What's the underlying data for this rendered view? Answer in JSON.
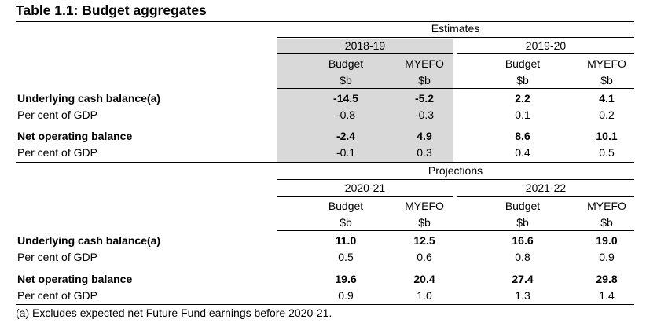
{
  "title": "Table 1.1: Budget aggregates",
  "sections": [
    {
      "heading": "Estimates",
      "years": [
        "2018-19",
        "2019-20"
      ],
      "subheaders": [
        "Budget",
        "MYEFO",
        "Budget",
        "MYEFO"
      ],
      "units": [
        "$b",
        "$b",
        "$b",
        "$b"
      ],
      "rows": [
        {
          "label": "Underlying cash balance(a)",
          "bold": true,
          "values": [
            "-14.5",
            "-5.2",
            "2.2",
            "4.1"
          ]
        },
        {
          "label": "Per cent of GDP",
          "bold": false,
          "values": [
            "-0.8",
            "-0.3",
            "0.1",
            "0.2"
          ]
        },
        {
          "label": "Net operating balance",
          "bold": true,
          "values": [
            "-2.4",
            "4.9",
            "8.6",
            "10.1"
          ]
        },
        {
          "label": "Per cent of GDP",
          "bold": false,
          "values": [
            "-0.1",
            "0.3",
            "0.4",
            "0.5"
          ]
        }
      ]
    },
    {
      "heading": "Projections",
      "years": [
        "2020-21",
        "2021-22"
      ],
      "subheaders": [
        "Budget",
        "MYEFO",
        "Budget",
        "MYEFO"
      ],
      "units": [
        "$b",
        "$b",
        "$b",
        "$b"
      ],
      "rows": [
        {
          "label": "Underlying cash balance(a)",
          "bold": true,
          "values": [
            "11.0",
            "12.5",
            "16.6",
            "19.0"
          ]
        },
        {
          "label": "Per cent of GDP",
          "bold": false,
          "values": [
            "0.5",
            "0.6",
            "0.8",
            "0.9"
          ]
        },
        {
          "label": "Net operating balance",
          "bold": true,
          "values": [
            "19.6",
            "20.4",
            "27.4",
            "29.8"
          ]
        },
        {
          "label": "Per cent of GDP",
          "bold": false,
          "values": [
            "0.9",
            "1.0",
            "1.3",
            "1.4"
          ]
        }
      ]
    }
  ],
  "footnote": "(a)  Excludes expected net Future Fund earnings before 2020-21."
}
